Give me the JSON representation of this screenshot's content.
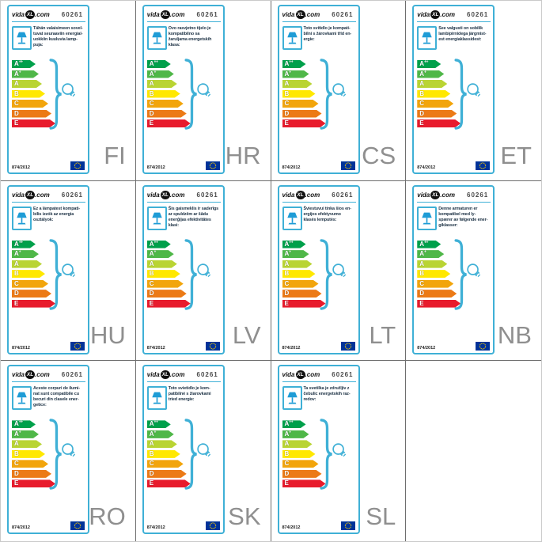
{
  "brand": {
    "prefix": "vida",
    "xl": "XL",
    "suffix": ".com"
  },
  "product_number": "60261",
  "regulation": "874/2012",
  "accent_color": "#3FB0D6",
  "grid_line_color": "#6E6E6E",
  "language_code_color": "#8F8F8F",
  "description_text_color": "#1C3144",
  "eu_flag": {
    "background": "#003399",
    "stars": "#FFCC00"
  },
  "icons": {
    "lamp": "table-lamp-icon",
    "bulb": "light-bulb-icon",
    "brace": "curly-brace-glyph",
    "flag": "eu-flag-icon"
  },
  "energy_classes": [
    {
      "label": "A",
      "sup": "++",
      "color": "#00A04B"
    },
    {
      "label": "A",
      "sup": "+",
      "color": "#4FB748"
    },
    {
      "label": "A",
      "sup": "",
      "color": "#B9D433"
    },
    {
      "label": "B",
      "sup": "",
      "color": "#FFE800"
    },
    {
      "label": "C",
      "sup": "",
      "color": "#F2A50C"
    },
    {
      "label": "D",
      "sup": "",
      "color": "#EC7A16"
    },
    {
      "label": "E",
      "sup": "",
      "color": "#E81B2C"
    }
  ],
  "cards": [
    {
      "lang": "FI",
      "description": "Tähän valaisimeen sovel-\ntuvat seuraaviin energial-\nuokkiin kuuluvia lamp-\npuja:"
    },
    {
      "lang": "HR",
      "description": "Ovo rasvjetno tijelo je\nkompatibilno sa\nžaruljama energetskih\nklasa:"
    },
    {
      "lang": "CS",
      "description": "Toto svítidlo je kompati-\nbilní s žárovkami tříd en-\nergie:"
    },
    {
      "lang": "ET",
      "description": "See valgusti on sobilik\nlambipirnidega järgmist-\nest energiaklassidest:"
    },
    {
      "lang": "HU",
      "description": "Ez a lámpatest kompati-\nbilis izzók az energia\nosztályok:"
    },
    {
      "lang": "LV",
      "description": "Šis gaismeklis ir saderīgs\nar spuldzēm ar šādu\nenerģijas efektivitātes\nklasi:"
    },
    {
      "lang": "LT",
      "description": "Šviestuvui tinka šios en-\nergijos efektyvumo\nklasės lemputės:"
    },
    {
      "lang": "NB",
      "description": "Denne armaturen er\nkompatibel med ly-\nspærer av følgende ener-\ngiklasser:"
    },
    {
      "lang": "RO",
      "description": "Aceste corpuri de ilumi-\nnat sunt compatibile cu\nbecuri din clasele ener-\ngetice:"
    },
    {
      "lang": "SK",
      "description": "Toto svietidlo je kom-\npatibilné s žiarovkami\ntried energie:"
    },
    {
      "lang": "SL",
      "description": "Ta svetilka je združljiv z\nčebulic energetskih raz-\nredov:"
    }
  ]
}
